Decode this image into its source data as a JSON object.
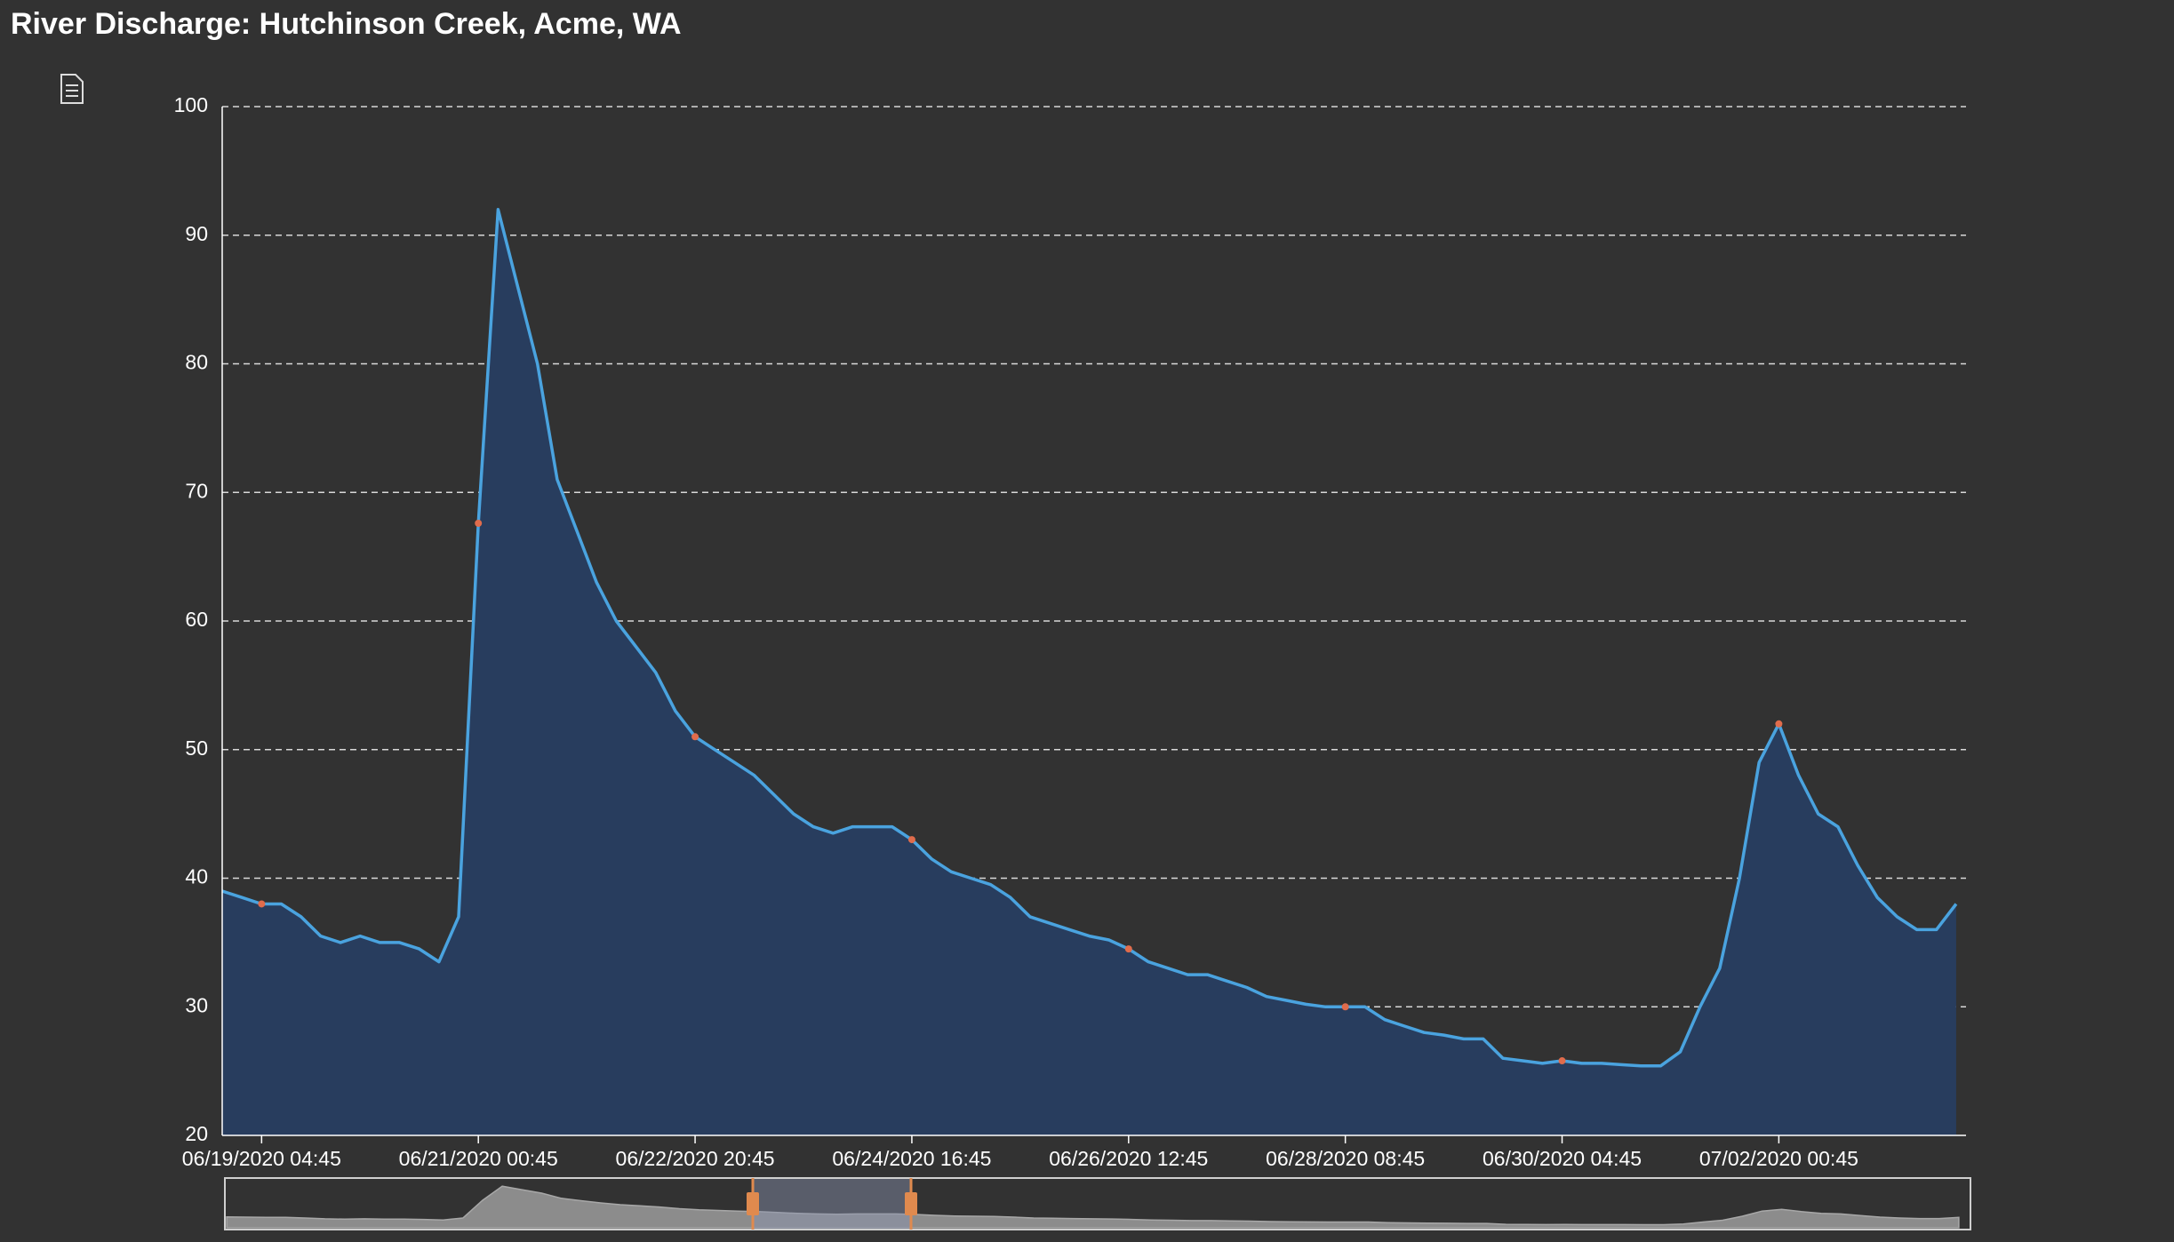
{
  "chart_data": {
    "type": "area",
    "title": "River Discharge: Hutchinson Creek, Acme, WA",
    "x": [
      "06/18/2020 20:45",
      "06/19/2020 00:45",
      "06/19/2020 04:45",
      "06/19/2020 08:45",
      "06/19/2020 12:45",
      "06/19/2020 16:45",
      "06/19/2020 20:45",
      "06/20/2020 00:45",
      "06/20/2020 04:45",
      "06/20/2020 08:45",
      "06/20/2020 12:45",
      "06/20/2020 16:45",
      "06/20/2020 20:45",
      "06/21/2020 00:45",
      "06/21/2020 04:45",
      "06/21/2020 08:45",
      "06/21/2020 12:45",
      "06/21/2020 16:45",
      "06/21/2020 20:45",
      "06/22/2020 00:45",
      "06/22/2020 04:45",
      "06/22/2020 08:45",
      "06/22/2020 12:45",
      "06/22/2020 16:45",
      "06/22/2020 20:45",
      "06/23/2020 00:45",
      "06/23/2020 04:45",
      "06/23/2020 08:45",
      "06/23/2020 12:45",
      "06/23/2020 16:45",
      "06/23/2020 20:45",
      "06/24/2020 00:45",
      "06/24/2020 04:45",
      "06/24/2020 08:45",
      "06/24/2020 12:45",
      "06/24/2020 16:45",
      "06/24/2020 20:45",
      "06/25/2020 00:45",
      "06/25/2020 04:45",
      "06/25/2020 08:45",
      "06/25/2020 12:45",
      "06/25/2020 16:45",
      "06/25/2020 20:45",
      "06/26/2020 00:45",
      "06/26/2020 04:45",
      "06/26/2020 08:45",
      "06/26/2020 12:45",
      "06/26/2020 16:45",
      "06/26/2020 20:45",
      "06/27/2020 00:45",
      "06/27/2020 04:45",
      "06/27/2020 08:45",
      "06/27/2020 12:45",
      "06/27/2020 16:45",
      "06/27/2020 20:45",
      "06/28/2020 00:45",
      "06/28/2020 04:45",
      "06/28/2020 08:45",
      "06/28/2020 12:45",
      "06/28/2020 16:45",
      "06/28/2020 20:45",
      "06/29/2020 00:45",
      "06/29/2020 04:45",
      "06/29/2020 08:45",
      "06/29/2020 12:45",
      "06/29/2020 16:45",
      "06/29/2020 20:45",
      "06/30/2020 00:45",
      "06/30/2020 04:45",
      "06/30/2020 08:45",
      "06/30/2020 12:45",
      "06/30/2020 16:45",
      "06/30/2020 20:45",
      "07/01/2020 00:45",
      "07/01/2020 04:45",
      "07/01/2020 08:45",
      "07/01/2020 12:45",
      "07/01/2020 16:45",
      "07/01/2020 20:45",
      "07/02/2020 00:45",
      "07/02/2020 04:45",
      "07/02/2020 08:45",
      "07/02/2020 12:45",
      "07/02/2020 16:45",
      "07/02/2020 20:45",
      "07/03/2020 00:45",
      "07/03/2020 04:45",
      "07/03/2020 08:45",
      "07/03/2020 12:45"
    ],
    "values": [
      39,
      38.5,
      38,
      38,
      37,
      35.5,
      35,
      35.5,
      35,
      35,
      34.5,
      33.5,
      37,
      67.6,
      92,
      86,
      80,
      71,
      67,
      63,
      60,
      58,
      56,
      53,
      51,
      50,
      49,
      48,
      46.5,
      45,
      44,
      43.5,
      44,
      44,
      44,
      43,
      41.5,
      40.5,
      40,
      39.5,
      38.5,
      37,
      36.5,
      36,
      35.5,
      35.2,
      34.5,
      33.5,
      33,
      32.5,
      32.5,
      32,
      31.5,
      30.8,
      30.5,
      30.2,
      30,
      30,
      30,
      29,
      28.5,
      28,
      27.8,
      27.5,
      27.5,
      26,
      25.8,
      25.6,
      25.8,
      25.6,
      25.6,
      25.5,
      25.4,
      25.4,
      26.5,
      30,
      33,
      40,
      49,
      52,
      48,
      45,
      44,
      41,
      38.5,
      37,
      36,
      36,
      38
    ],
    "color": "#4aa3df",
    "fill_color": "#283d5e",
    "marker_color": "#e06c4c",
    "xlim": [
      "06/18/2020 20:45",
      "07/03/2020 14:45"
    ],
    "xticks": [
      "06/19/2020 04:45",
      "06/21/2020 00:45",
      "06/22/2020 20:45",
      "06/24/2020 16:45",
      "06/26/2020 12:45",
      "06/28/2020 08:45",
      "06/30/2020 04:45",
      "07/02/2020 00:45"
    ],
    "ylim": [
      20,
      100
    ],
    "yticks": [
      20,
      30,
      40,
      50,
      60,
      70,
      80,
      90,
      100
    ],
    "grid": true
  }
}
